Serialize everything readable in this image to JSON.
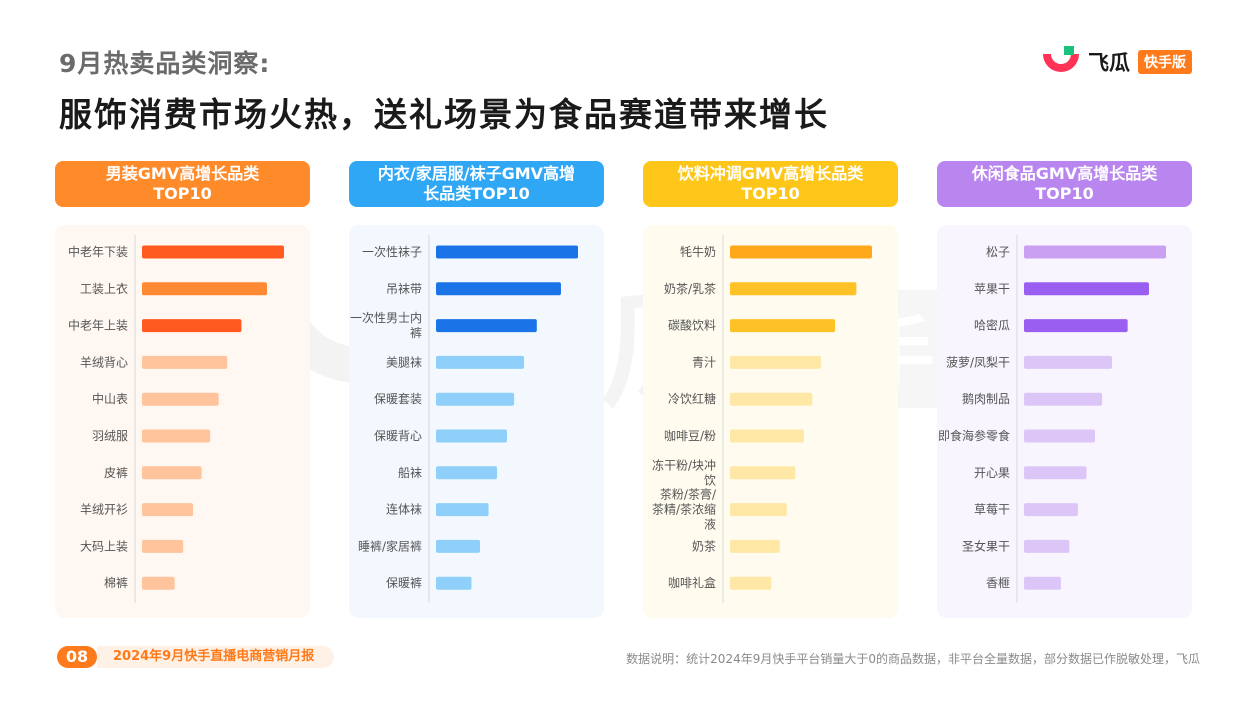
{
  "header": {
    "subtitle": "9月热卖品类洞察:",
    "title": "服饰消费市场火热，送礼场景为食品赛道带来增长"
  },
  "logo": {
    "name": "飞瓜",
    "tag": "快手版"
  },
  "watermark": {
    "text": "飞瓜",
    "tag": "快手版"
  },
  "footer": {
    "page_number": "08",
    "report_name": "2024年9月快手直播电商营销月报",
    "note": "数据说明：统计2024年9月快手平台销量大于0的商品数据，非平台全量数据，部分数据已作脱敏处理，飞瓜"
  },
  "chart_data": [
    {
      "type": "bar",
      "orientation": "horizontal",
      "title": "男装GMV高增长品类TOP10",
      "header_color": "#ff8a2a",
      "panel_color": "#fff8f2",
      "categories": [
        "中老年下装",
        "工装上衣",
        "中老年上装",
        "羊绒背心",
        "中山表",
        "羽绒服",
        "皮裤",
        "羊绒开衫",
        "大码上装",
        "棉裤"
      ],
      "values": [
        100,
        88,
        70,
        60,
        54,
        48,
        42,
        36,
        29,
        23
      ],
      "value_scale": "relative (no axis printed)",
      "bar_colors": [
        "#ff5a1f",
        "#ff8833",
        "#ff5a1f",
        "#ffc49b",
        "#ffc49b",
        "#ffc49b",
        "#ffc49b",
        "#ffc49b",
        "#ffc49b",
        "#ffc49b"
      ]
    },
    {
      "type": "bar",
      "orientation": "horizontal",
      "title": "内衣/家居服/袜子GMV高增长品类TOP10",
      "header_color": "#2fa7f5",
      "panel_color": "#f2f8fe",
      "categories": [
        "一次性袜子",
        "吊袜带",
        "一次性男士内裤",
        "美腿袜",
        "保暖套装",
        "保暖背心",
        "船袜",
        "连体袜",
        "睡裤/家居裤",
        "保暖裤"
      ],
      "values": [
        100,
        88,
        71,
        62,
        55,
        50,
        43,
        37,
        31,
        25
      ],
      "value_scale": "relative (no axis printed)",
      "bar_colors": [
        "#1b73e8",
        "#1b73e8",
        "#1b73e8",
        "#8fd0fa",
        "#8fd0fa",
        "#8fd0fa",
        "#8fd0fa",
        "#8fd0fa",
        "#8fd0fa",
        "#8fd0fa"
      ]
    },
    {
      "type": "bar",
      "orientation": "horizontal",
      "title": "饮料冲调GMV高增长品类TOP10",
      "header_color": "#ffc61a",
      "panel_color": "#fffbee",
      "categories": [
        "牦牛奶",
        "奶茶/乳茶",
        "碳酸饮料",
        "青汁",
        "冷饮红糖",
        "咖啡豆/粉",
        "冻干粉/块冲饮",
        "茶粉/茶膏/茶精/茶浓缩液",
        "奶茶",
        "咖啡礼盒"
      ],
      "values": [
        100,
        89,
        74,
        64,
        58,
        52,
        46,
        40,
        35,
        29
      ],
      "value_scale": "relative (no axis printed)",
      "bar_colors": [
        "#ffa91a",
        "#ffc226",
        "#ffc226",
        "#ffe7a6",
        "#ffe7a6",
        "#ffe7a6",
        "#ffe7a6",
        "#ffe7a6",
        "#ffe7a6",
        "#ffe7a6"
      ]
    },
    {
      "type": "bar",
      "orientation": "horizontal",
      "title": "休闲食品GMV高增长品类TOP10",
      "header_color": "#b886ee",
      "panel_color": "#f8f5fe",
      "categories": [
        "松子",
        "苹果干",
        "哈密瓜",
        "菠萝/凤梨干",
        "鹅肉制品",
        "即食海参零食",
        "开心果",
        "草莓干",
        "圣女果干",
        "香榧"
      ],
      "values": [
        100,
        88,
        73,
        62,
        55,
        50,
        44,
        38,
        32,
        26
      ],
      "value_scale": "relative (no axis printed)",
      "bar_colors": [
        "#c9a0f2",
        "#9a5ff0",
        "#9a5ff0",
        "#dcc6f7",
        "#dcc6f7",
        "#dcc6f7",
        "#dcc6f7",
        "#dcc6f7",
        "#dcc6f7",
        "#dcc6f7"
      ]
    }
  ]
}
